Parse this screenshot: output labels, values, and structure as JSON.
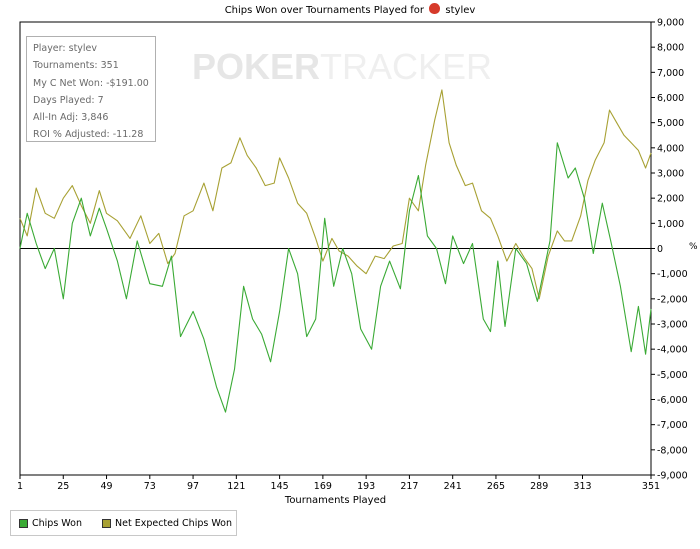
{
  "title": {
    "prefix": "Chips Won over Tournaments Played for",
    "player": "stylev"
  },
  "watermark": {
    "part1": "POKER",
    "part2": "TRACKER"
  },
  "stats": {
    "player": "Player: stylev",
    "tournaments": "Tournaments: 351",
    "net_won": "My C Net Won: -$191.00",
    "days": "Days Played: 7",
    "allin": "All-In Adj: 3,846",
    "roi": "ROI % Adjusted: -11.28"
  },
  "legend": {
    "chips_won": "Chips Won",
    "expected": "Net Expected Chips Won"
  },
  "xlabel": "Tournaments Played",
  "right_axis_symbol": "%",
  "chart_data": {
    "type": "line",
    "title": "Chips Won over Tournaments Played for stylev",
    "xlabel": "Tournaments Played",
    "ylabel": "",
    "xlim": [
      1,
      351
    ],
    "ylim": [
      -9000,
      9000
    ],
    "xticks": [
      1,
      25,
      49,
      73,
      97,
      121,
      145,
      169,
      193,
      217,
      241,
      265,
      289,
      313,
      351
    ],
    "yticks": [
      9000,
      8000,
      7000,
      6000,
      5000,
      4000,
      3000,
      2000,
      1000,
      0,
      -1000,
      -2000,
      -3000,
      -4000,
      -5000,
      -6000,
      -7000,
      -8000,
      -9000
    ],
    "ytick_labels": [
      "9,000",
      "8,000",
      "7,000",
      "6,000",
      "5,000",
      "4,000",
      "3,000",
      "2,000",
      "1,000",
      "0",
      "-1,000",
      "-2,000",
      "-3,000",
      "-4,000",
      "-5,000",
      "-6,000",
      "-7,000",
      "-8,000",
      "-9,000"
    ],
    "series": [
      {
        "name": "Chips Won",
        "color": "#3aaa35",
        "points": [
          [
            1,
            0
          ],
          [
            5,
            1400
          ],
          [
            10,
            200
          ],
          [
            15,
            -800
          ],
          [
            20,
            0
          ],
          [
            25,
            -2000
          ],
          [
            30,
            1000
          ],
          [
            35,
            2000
          ],
          [
            40,
            500
          ],
          [
            45,
            1600
          ],
          [
            49,
            800
          ],
          [
            55,
            -500
          ],
          [
            60,
            -2000
          ],
          [
            66,
            300
          ],
          [
            73,
            -1400
          ],
          [
            80,
            -1500
          ],
          [
            85,
            -300
          ],
          [
            90,
            -3500
          ],
          [
            97,
            -2500
          ],
          [
            103,
            -3600
          ],
          [
            110,
            -5500
          ],
          [
            115,
            -6500
          ],
          [
            120,
            -4800
          ],
          [
            125,
            -1500
          ],
          [
            130,
            -2800
          ],
          [
            135,
            -3400
          ],
          [
            140,
            -4500
          ],
          [
            145,
            -2500
          ],
          [
            150,
            0
          ],
          [
            155,
            -1000
          ],
          [
            160,
            -3500
          ],
          [
            165,
            -2800
          ],
          [
            170,
            1200
          ],
          [
            175,
            -1500
          ],
          [
            180,
            0
          ],
          [
            185,
            -1000
          ],
          [
            190,
            -3200
          ],
          [
            196,
            -4000
          ],
          [
            201,
            -1500
          ],
          [
            206,
            -500
          ],
          [
            212,
            -1600
          ],
          [
            217,
            1500
          ],
          [
            222,
            2900
          ],
          [
            227,
            500
          ],
          [
            232,
            0
          ],
          [
            237,
            -1400
          ],
          [
            241,
            500
          ],
          [
            247,
            -600
          ],
          [
            252,
            200
          ],
          [
            258,
            -2800
          ],
          [
            262,
            -3300
          ],
          [
            266,
            -500
          ],
          [
            270,
            -3100
          ],
          [
            276,
            0
          ],
          [
            282,
            -600
          ],
          [
            288,
            -2100
          ],
          [
            295,
            300
          ],
          [
            299,
            4200
          ],
          [
            305,
            2800
          ],
          [
            309,
            3200
          ],
          [
            314,
            2000
          ],
          [
            319,
            -200
          ],
          [
            324,
            1800
          ],
          [
            329,
            200
          ],
          [
            334,
            -1500
          ],
          [
            340,
            -4100
          ],
          [
            344,
            -2300
          ],
          [
            348,
            -4200
          ],
          [
            351,
            -2400
          ]
        ]
      },
      {
        "name": "Net Expected Chips Won",
        "color": "#a8a134",
        "points": [
          [
            1,
            1200
          ],
          [
            5,
            500
          ],
          [
            10,
            2400
          ],
          [
            15,
            1400
          ],
          [
            20,
            1200
          ],
          [
            25,
            2000
          ],
          [
            30,
            2500
          ],
          [
            35,
            1700
          ],
          [
            40,
            1000
          ],
          [
            45,
            2300
          ],
          [
            49,
            1400
          ],
          [
            55,
            1100
          ],
          [
            62,
            400
          ],
          [
            68,
            1300
          ],
          [
            73,
            200
          ],
          [
            78,
            600
          ],
          [
            83,
            -600
          ],
          [
            87,
            -200
          ],
          [
            92,
            1300
          ],
          [
            97,
            1500
          ],
          [
            103,
            2600
          ],
          [
            108,
            1500
          ],
          [
            113,
            3200
          ],
          [
            118,
            3400
          ],
          [
            123,
            4400
          ],
          [
            127,
            3700
          ],
          [
            132,
            3200
          ],
          [
            137,
            2500
          ],
          [
            142,
            2600
          ],
          [
            145,
            3600
          ],
          [
            150,
            2800
          ],
          [
            155,
            1800
          ],
          [
            160,
            1400
          ],
          [
            165,
            400
          ],
          [
            169,
            -500
          ],
          [
            174,
            400
          ],
          [
            178,
            -100
          ],
          [
            183,
            -300
          ],
          [
            188,
            -700
          ],
          [
            193,
            -1000
          ],
          [
            198,
            -300
          ],
          [
            203,
            -400
          ],
          [
            208,
            100
          ],
          [
            213,
            200
          ],
          [
            217,
            2000
          ],
          [
            222,
            1500
          ],
          [
            226,
            3300
          ],
          [
            231,
            5100
          ],
          [
            235,
            6300
          ],
          [
            239,
            4200
          ],
          [
            243,
            3300
          ],
          [
            248,
            2500
          ],
          [
            252,
            2600
          ],
          [
            257,
            1500
          ],
          [
            262,
            1200
          ],
          [
            266,
            500
          ],
          [
            271,
            -500
          ],
          [
            276,
            200
          ],
          [
            281,
            -400
          ],
          [
            285,
            -800
          ],
          [
            289,
            -2000
          ],
          [
            294,
            -300
          ],
          [
            299,
            700
          ],
          [
            303,
            300
          ],
          [
            307,
            300
          ],
          [
            312,
            1300
          ],
          [
            316,
            2700
          ],
          [
            320,
            3500
          ],
          [
            325,
            4200
          ],
          [
            328,
            5500
          ],
          [
            332,
            5000
          ],
          [
            336,
            4500
          ],
          [
            340,
            4200
          ],
          [
            344,
            3900
          ],
          [
            348,
            3200
          ],
          [
            351,
            3800
          ]
        ]
      }
    ]
  }
}
